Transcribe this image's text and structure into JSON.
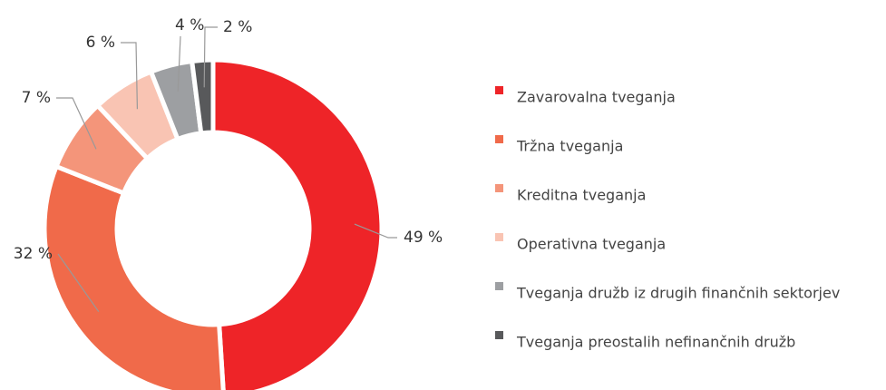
{
  "chart_data": {
    "type": "donut",
    "categories": [
      "Zavarovalna tveganja",
      "Tržna tveganja",
      "Kreditna tveganja",
      "Operativna tveganja",
      "Tveganja družb iz drugih finančnih sektorjev",
      "Tveganja preostalih nefinančnih družb"
    ],
    "values": [
      49,
      32,
      7,
      6,
      4,
      2
    ],
    "value_labels": [
      "49 %",
      "32 %",
      "7 %",
      "6 %",
      "4 %",
      "2 %"
    ],
    "colors": [
      "#ee2428",
      "#f06a4a",
      "#f4957a",
      "#f9c4b3",
      "#9d9fa2",
      "#58595b"
    ],
    "legend": "right"
  }
}
